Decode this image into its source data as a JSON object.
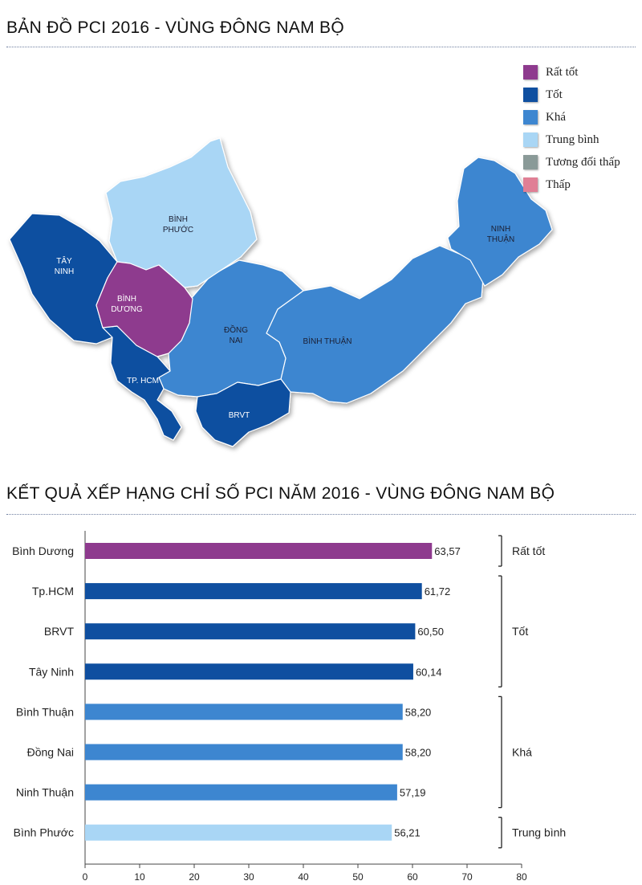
{
  "map": {
    "title": "BẢN ĐỒ PCI 2016 - VÙNG ĐÔNG NAM BỘ",
    "legend": [
      {
        "label": "Rất tốt",
        "color": "#8e3a8e"
      },
      {
        "label": "Tốt",
        "color": "#0f4fa0"
      },
      {
        "label": "Khá",
        "color": "#3d86d0"
      },
      {
        "label": "Trung bình",
        "color": "#a9d6f5"
      },
      {
        "label": "Tương đối thấp",
        "color": "#8a9a98"
      },
      {
        "label": "Thấp",
        "color": "#e07f95"
      }
    ],
    "provinces": [
      {
        "id": "tay-ninh",
        "line1": "TÂY",
        "line2": "NINH",
        "rating": "Tốt"
      },
      {
        "id": "binh-phuoc",
        "line1": "BÌNH",
        "line2": "PHƯỚC",
        "rating": "Trung bình"
      },
      {
        "id": "binh-duong",
        "line1": "BÌNH",
        "line2": "DƯƠNG",
        "rating": "Rất tốt"
      },
      {
        "id": "dong-nai",
        "line1": "ĐỒNG",
        "line2": "NAI",
        "rating": "Khá"
      },
      {
        "id": "binh-thuan",
        "line1": "BÌNH THUẬN",
        "line2": "",
        "rating": "Khá"
      },
      {
        "id": "ninh-thuan",
        "line1": "NINH",
        "line2": "THUẬN",
        "rating": "Khá"
      },
      {
        "id": "tp-hcm",
        "line1": "TP. HCM",
        "line2": "",
        "rating": "Tốt"
      },
      {
        "id": "brvt",
        "line1": "BRVT",
        "line2": "",
        "rating": "Tốt"
      }
    ]
  },
  "chart_data": {
    "type": "bar",
    "orientation": "horizontal",
    "title": "KẾT QUẢ XẾP HẠNG CHỈ SỐ PCI NĂM 2016 - VÙNG ĐÔNG NAM BỘ",
    "categories": [
      "Bình Dương",
      "Tp.HCM",
      "BRVT",
      "Tây Ninh",
      "Bình Thuận",
      "Đồng Nai",
      "Ninh Thuận",
      "Bình Phước"
    ],
    "values": [
      63.57,
      61.72,
      60.5,
      60.14,
      58.2,
      58.2,
      57.19,
      56.21
    ],
    "value_labels": [
      "63,57",
      "61,72",
      "60,50",
      "60,14",
      "58,20",
      "58,20",
      "57,19",
      "56,21"
    ],
    "bar_colors": [
      "#8e3a8e",
      "#0f4fa0",
      "#0f4fa0",
      "#0f4fa0",
      "#3d86d0",
      "#3d86d0",
      "#3d86d0",
      "#a9d6f5"
    ],
    "groups": [
      {
        "label": "Rất tốt",
        "from": 0,
        "to": 0
      },
      {
        "label": "Tốt",
        "from": 1,
        "to": 3
      },
      {
        "label": "Khá",
        "from": 4,
        "to": 6
      },
      {
        "label": "Trung bình",
        "from": 7,
        "to": 7
      }
    ],
    "xlim": [
      0,
      80
    ],
    "xticks": [
      0,
      10,
      20,
      30,
      40,
      50,
      60,
      70,
      80
    ],
    "xlabel": "",
    "ylabel": ""
  }
}
